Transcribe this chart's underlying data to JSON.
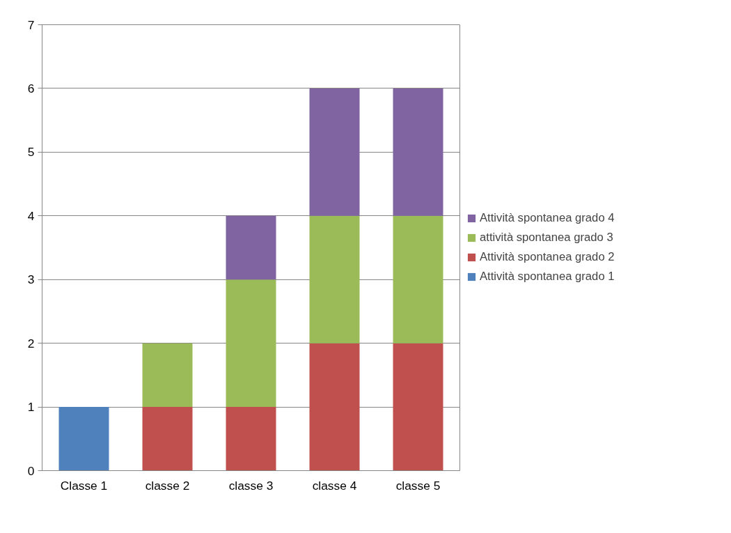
{
  "chart_data": {
    "type": "bar",
    "stacked": true,
    "categories": [
      "Classe 1",
      "classe 2",
      "classe 3",
      "classe 4",
      "classe 5"
    ],
    "series": [
      {
        "name": "Attività spontanea grado 1",
        "color": "#4f81bd",
        "values": [
          1,
          null,
          null,
          null,
          null
        ]
      },
      {
        "name": "Attività spontanea grado 2",
        "color": "#c0504d",
        "values": [
          null,
          1,
          1,
          2,
          2
        ]
      },
      {
        "name": "attività spontanea grado 3",
        "color": "#9bbb59",
        "values": [
          null,
          1,
          2,
          2,
          2
        ]
      },
      {
        "name": "Attività spontanea grado 4",
        "color": "#8064a2",
        "values": [
          null,
          null,
          1,
          2,
          2
        ]
      }
    ],
    "ylim": [
      0,
      7
    ],
    "yticks": [
      0,
      1,
      2,
      3,
      4,
      5,
      6,
      7
    ],
    "grid": "y",
    "legend": "right"
  }
}
